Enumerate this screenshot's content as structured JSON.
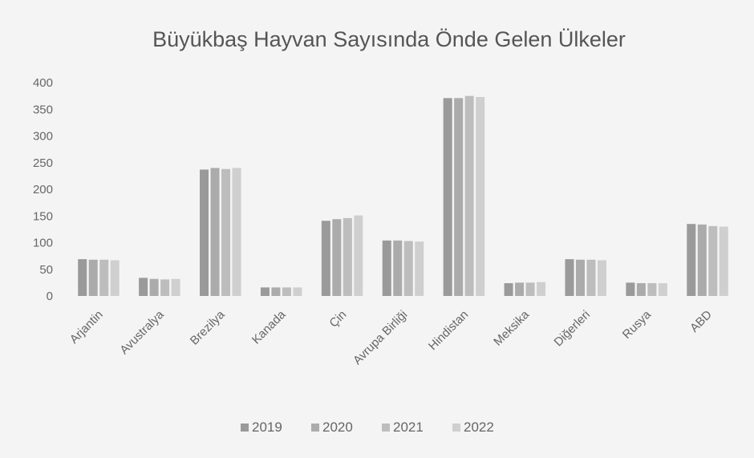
{
  "chart_data": {
    "type": "bar",
    "title": "Büyükbaş Hayvan Sayısında Önde Gelen Ülkeler",
    "xlabel": "",
    "ylabel": "",
    "ylim": [
      0,
      400
    ],
    "yticks": [
      0,
      50,
      100,
      150,
      200,
      250,
      300,
      350,
      400
    ],
    "grid": false,
    "legend_position": "bottom",
    "categories": [
      "Arjantin",
      "Avustralya",
      "Brezilya",
      "Kanada",
      "Çin",
      "Avrupa Birliği",
      "Hindistan",
      "Meksika",
      "Diğerleri",
      "Rusya",
      "ABD"
    ],
    "series": [
      {
        "name": "2019",
        "color": "#9a9a9a",
        "values": [
          69,
          34,
          237,
          16,
          141,
          104,
          371,
          24,
          69,
          25,
          135
        ]
      },
      {
        "name": "2020",
        "color": "#ababab",
        "values": [
          68,
          32,
          240,
          16,
          144,
          104,
          371,
          25,
          68,
          24,
          134
        ]
      },
      {
        "name": "2021",
        "color": "#bdbdbd",
        "values": [
          68,
          31,
          238,
          16,
          146,
          103,
          375,
          25,
          68,
          24,
          131
        ]
      },
      {
        "name": "2022",
        "color": "#cfcfcf",
        "values": [
          67,
          32,
          240,
          16,
          151,
          102,
          373,
          26,
          67,
          24,
          130
        ]
      }
    ]
  }
}
